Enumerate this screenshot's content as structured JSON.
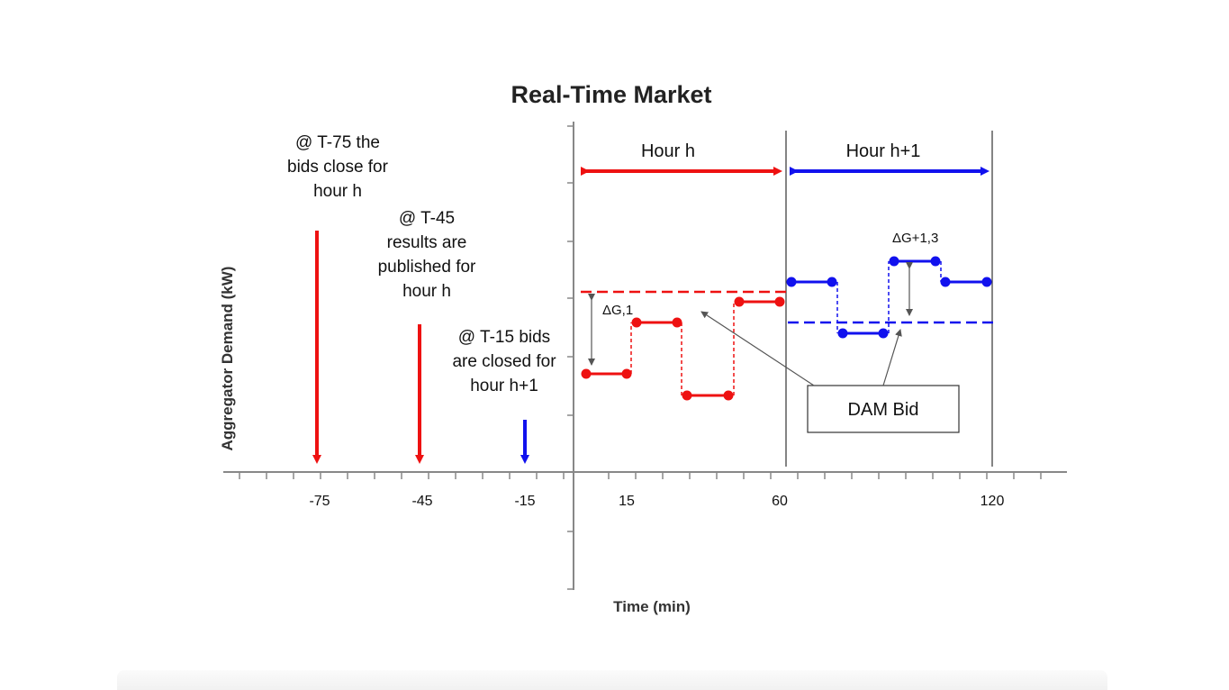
{
  "title": "Real-Time Market",
  "y_axis_label": "Aggregator Demand (kW)",
  "x_axis_label": "Time (min)",
  "x_ticks": [
    "-75",
    "-45",
    "-15",
    "15",
    "60",
    "120"
  ],
  "annotations": {
    "t75": [
      "@ T-75 the",
      "bids close for",
      "hour h"
    ],
    "t45": [
      "@ T-45",
      "results are",
      "published for",
      "hour h"
    ],
    "t15": [
      "@ T-15 bids",
      "are closed for",
      "hour h+1"
    ]
  },
  "hour_labels": {
    "h": "Hour h",
    "h1": "Hour h+1"
  },
  "deltas": {
    "d1": "ΔG,1",
    "d2": "ΔG+1,3"
  },
  "dam_bid_label": "DAM Bid",
  "colors": {
    "hour_h": "#ee1111",
    "hour_h1": "#1111ee",
    "axis": "#888888",
    "guide": "#555555"
  }
}
